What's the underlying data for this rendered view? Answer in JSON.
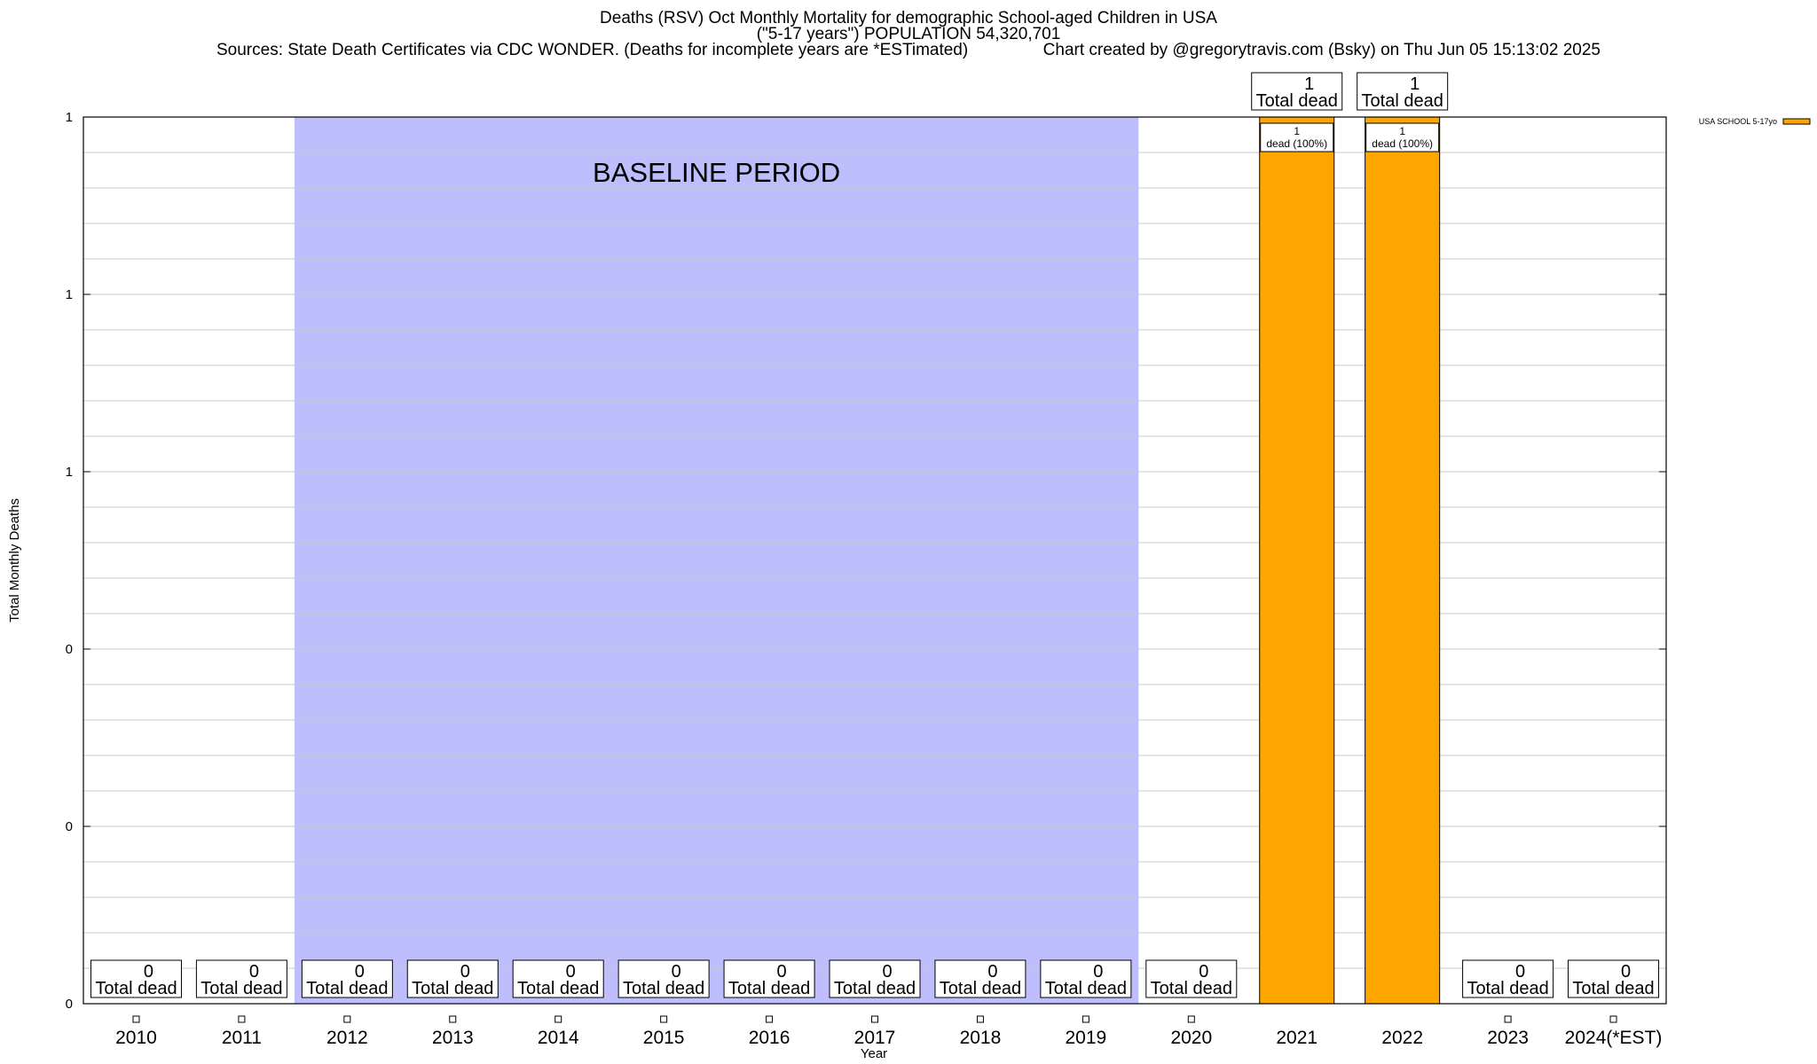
{
  "chart_data": {
    "type": "bar",
    "title": "Deaths (RSV) Oct Monthly Mortality for demographic School-aged Children in USA",
    "subtitle": "(\"5-17 years\") POPULATION 54,320,701",
    "source": "Sources: State Death Certificates via CDC WONDER. (Deaths for incomplete years are *ESTimated)",
    "credit": "Chart created by @gregorytravis.com (Bsky) on Thu Jun 05 15:13:02 2025",
    "xlabel": "Year",
    "ylabel": "Total Monthly Deaths",
    "ylim": [
      0,
      1
    ],
    "y_ticks": [
      {
        "value": 0,
        "label": "0"
      },
      {
        "value": 0.2,
        "label": "0"
      },
      {
        "value": 0.4,
        "label": "0"
      },
      {
        "value": 0.6,
        "label": "1"
      },
      {
        "value": 0.8,
        "label": "1"
      },
      {
        "value": 1,
        "label": "1"
      }
    ],
    "grid": true,
    "categories": [
      "2010",
      "2011",
      "2012",
      "2013",
      "2014",
      "2015",
      "2016",
      "2017",
      "2018",
      "2019",
      "2020",
      "2021",
      "2022",
      "2023",
      "2024(*EST)"
    ],
    "series": [
      {
        "name": "USA SCHOOL 5-17yo",
        "color": "#ffa500",
        "values": [
          0,
          0,
          0,
          0,
          0,
          0,
          0,
          0,
          0,
          0,
          0,
          1,
          1,
          0,
          0
        ]
      }
    ],
    "total_labels": [
      "0",
      "0",
      "0",
      "0",
      "0",
      "0",
      "0",
      "0",
      "0",
      "0",
      "0",
      "1",
      "1",
      "0",
      "0"
    ],
    "total_suffix": "Total dead",
    "inner_labels": [
      {
        "category": "2021",
        "count": "1",
        "text": "dead (100%)"
      },
      {
        "category": "2022",
        "count": "1",
        "text": "dead (100%)"
      }
    ],
    "baseline": {
      "label": "BASELINE PERIOD",
      "from": "2012",
      "to": "2019",
      "color": "#bebefd"
    },
    "legend": {
      "position": "top-right"
    }
  }
}
